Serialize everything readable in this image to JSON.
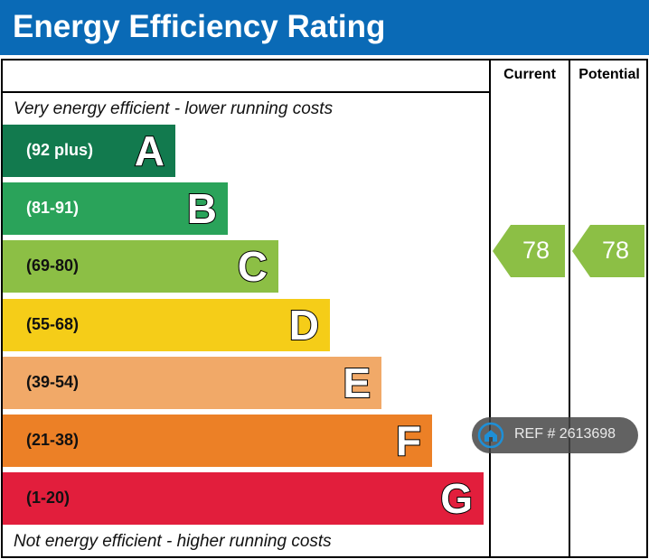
{
  "title": "Energy Efficiency Rating",
  "columns": {
    "current": "Current",
    "potential": "Potential"
  },
  "notes": {
    "top": "Very energy efficient - lower running costs",
    "bottom": "Not energy efficient - higher running costs"
  },
  "bands": [
    {
      "letter": "A",
      "range": "(92 plus)",
      "color": "#127a4e",
      "text_color": "#ffffff"
    },
    {
      "letter": "B",
      "range": "(81-91)",
      "color": "#2aa35a",
      "text_color": "#ffffff"
    },
    {
      "letter": "C",
      "range": "(69-80)",
      "color": "#8cbf45",
      "text_color": "#111111"
    },
    {
      "letter": "D",
      "range": "(55-68)",
      "color": "#f5cd18",
      "text_color": "#111111"
    },
    {
      "letter": "E",
      "range": "(39-54)",
      "color": "#f1a968",
      "text_color": "#111111"
    },
    {
      "letter": "F",
      "range": "(21-38)",
      "color": "#ec8026",
      "text_color": "#111111"
    },
    {
      "letter": "G",
      "range": "(1-20)",
      "color": "#e21e3c",
      "text_color": "#111111"
    }
  ],
  "ratings": {
    "current": {
      "value": "78",
      "band": "C",
      "color": "#8cbf45"
    },
    "potential": {
      "value": "78",
      "band": "C",
      "color": "#8cbf45"
    }
  },
  "watermark": {
    "text": "REF # 2613698",
    "icon": "home-logo-icon"
  },
  "chart_data": {
    "type": "bar",
    "categories": [
      "A",
      "B",
      "C",
      "D",
      "E",
      "F",
      "G"
    ],
    "ranges": [
      "(92 plus)",
      "(81-91)",
      "(69-80)",
      "(55-68)",
      "(39-54)",
      "(21-38)",
      "(1-20)"
    ],
    "current": 78,
    "potential": 78,
    "title": "Energy Efficiency Rating"
  }
}
